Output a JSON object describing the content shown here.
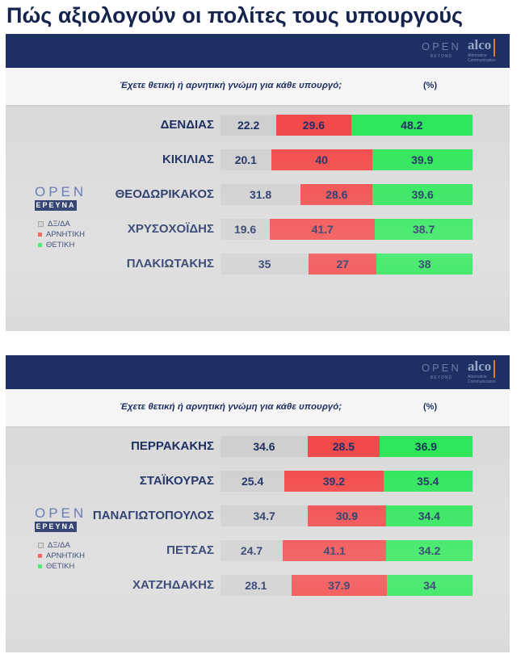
{
  "page": {
    "title": "Πώς αξιολογούν οι πολίτες τους υπουργούς"
  },
  "colors": {
    "neutral": "#cfcfcf",
    "negative": "#f24a4a",
    "positive": "#2ee65a",
    "navy": "#1d2f63"
  },
  "panels": [
    {
      "header_logo": {
        "open": "OPEN",
        "beyond": "BEYOND",
        "alco": "alco",
        "alco_sub": "Alternative Communication"
      },
      "question": "Έχετε θετική ή αρνητική γνώμη για κάθε υπουργό;",
      "unit": "(%)",
      "brand": {
        "open": "OPEN",
        "ereuna": "ΕΡΕΥΝΑ"
      },
      "legend": [
        "ΔΞ/ΔΑ",
        "ΑΡΝΗΤΙΚΗ",
        "ΘΕΤΙΚΗ"
      ]
    },
    {
      "header_logo": {
        "open": "OPEN",
        "beyond": "BEYOND",
        "alco": "alco",
        "alco_sub": "Alternative Communication"
      },
      "question": "Έχετε θετική ή αρνητική γνώμη για κάθε υπουργό;",
      "unit": "(%)",
      "brand": {
        "open": "OPEN",
        "ereuna": "ΕΡΕΥΝΑ"
      },
      "legend": [
        "ΔΞ/ΔΑ",
        "ΑΡΝΗΤΙΚΗ",
        "ΘΕΤΙΚΗ"
      ]
    }
  ],
  "chart_data": [
    {
      "type": "bar",
      "orientation": "horizontal",
      "stacked": true,
      "title": "Έχετε θετική ή αρνητική γνώμη για κάθε υπουργό;",
      "unit": "(%)",
      "legend_position": "left",
      "categories": [
        "ΔΕΝΔΙΑΣ",
        "ΚΙΚΙΛΙΑΣ",
        "ΘΕΟΔΩΡΙΚΑΚΟΣ",
        "ΧΡΥΣΟΧΟΪΔΗΣ",
        "ΠΛΑΚΙΩΤΑΚΗΣ"
      ],
      "series": [
        {
          "name": "ΔΞ/ΔΑ",
          "color": "#cfcfcf",
          "values": [
            22.2,
            20.1,
            31.8,
            19.6,
            35
          ]
        },
        {
          "name": "ΑΡΝΗΤΙΚΗ",
          "color": "#f24a4a",
          "values": [
            29.6,
            40,
            28.6,
            41.7,
            27
          ]
        },
        {
          "name": "ΘΕΤΙΚΗ",
          "color": "#2ee65a",
          "values": [
            48.2,
            39.9,
            39.6,
            38.7,
            38
          ]
        }
      ]
    },
    {
      "type": "bar",
      "orientation": "horizontal",
      "stacked": true,
      "title": "Έχετε θετική ή αρνητική γνώμη για κάθε υπουργό;",
      "unit": "(%)",
      "legend_position": "left",
      "categories": [
        "ΠΕΡΡΑΚΑΚΗΣ",
        "ΣΤΑΪΚΟΥΡΑΣ",
        "ΠΑΝΑΓΙΩΤΟΠΟΥΛΟΣ",
        "ΠΕΤΣΑΣ",
        "ΧΑΤΖΗΔΑΚΗΣ"
      ],
      "series": [
        {
          "name": "ΔΞ/ΔΑ",
          "color": "#cfcfcf",
          "values": [
            34.6,
            25.4,
            34.7,
            24.7,
            28.1
          ]
        },
        {
          "name": "ΑΡΝΗΤΙΚΗ",
          "color": "#f24a4a",
          "values": [
            28.5,
            39.2,
            30.9,
            41.1,
            37.9
          ]
        },
        {
          "name": "ΘΕΤΙΚΗ",
          "color": "#2ee65a",
          "values": [
            36.9,
            35.4,
            34.4,
            34.2,
            34
          ]
        }
      ]
    }
  ]
}
